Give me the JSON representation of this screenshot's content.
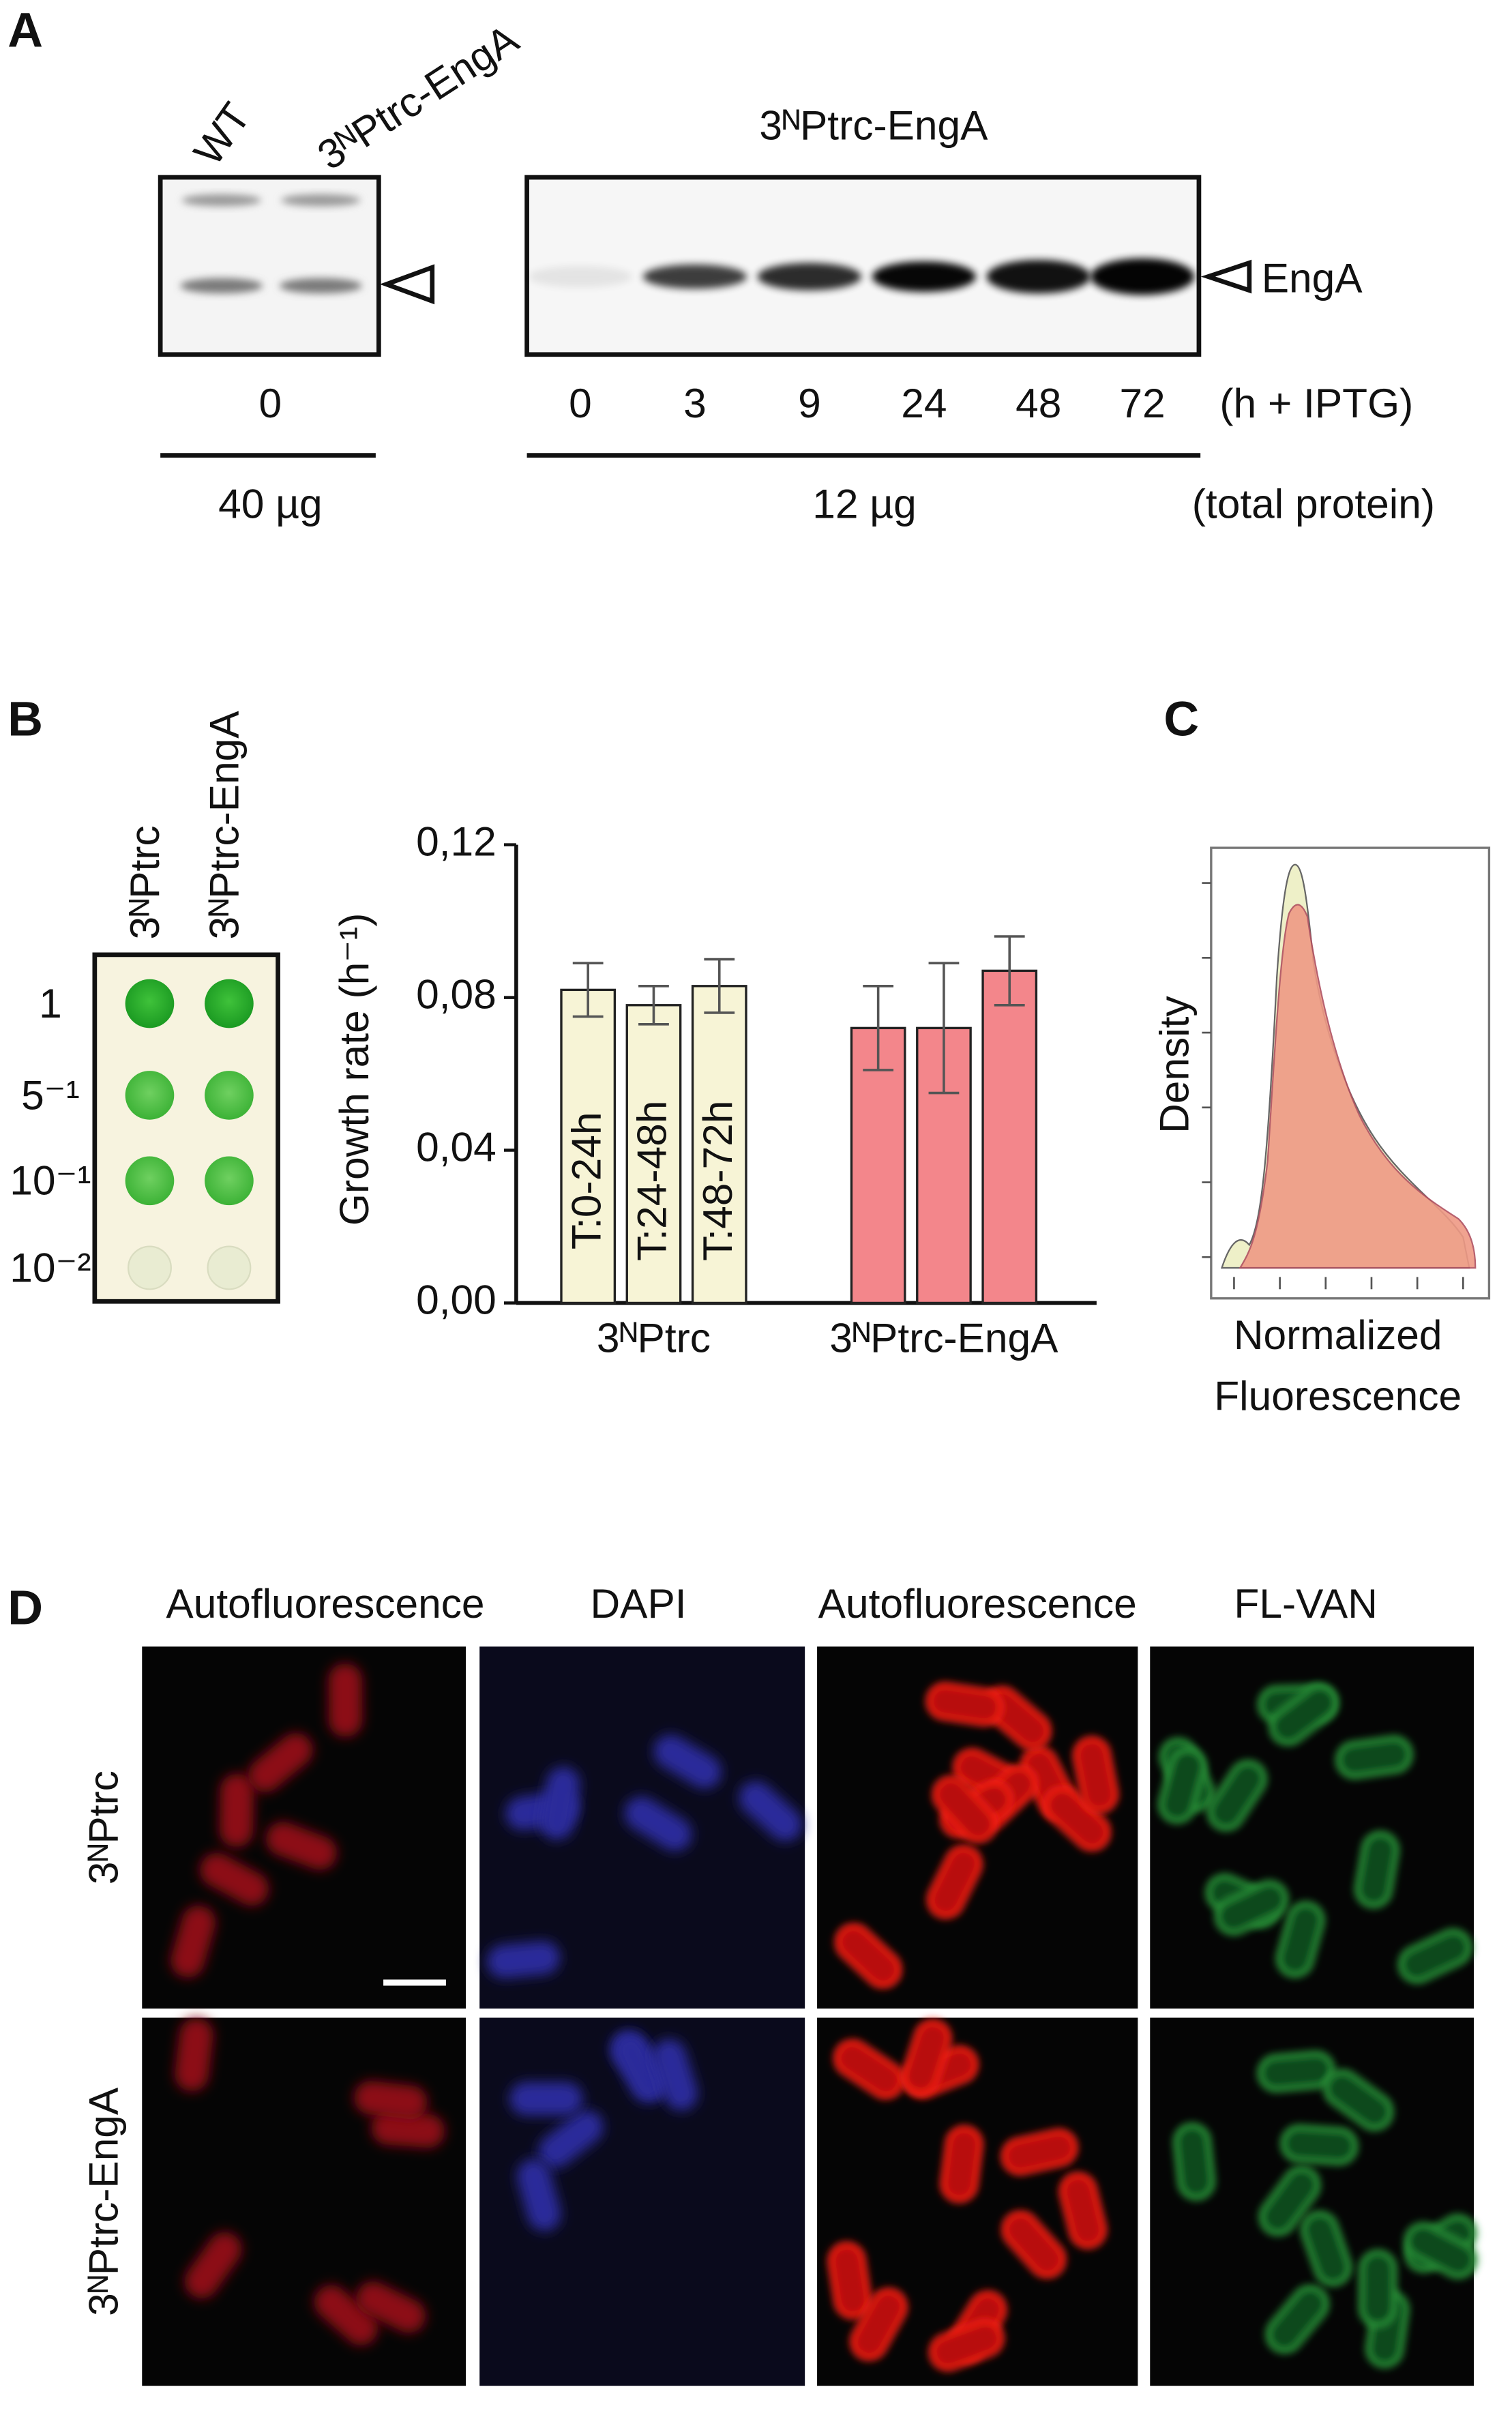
{
  "panel_a": {
    "label": "A",
    "left_lanes": [
      "WT",
      "3ᴺPtrc-EngA"
    ],
    "right_title": "3ᴺPtrc-EngA",
    "band_label": "EngA",
    "left_times": [
      "0"
    ],
    "right_times": [
      "0",
      "3",
      "9",
      "24",
      "48",
      "72"
    ],
    "time_unit": "(h + IPTG)",
    "left_amount": "40 µg",
    "right_amount": "12 µg",
    "amount_unit": "(total protein)"
  },
  "panel_b": {
    "label": "B",
    "strains": [
      "3ᴺPtrc",
      "3ᴺPtrc-EngA"
    ],
    "dilutions": [
      "1",
      "5⁻¹",
      "10⁻¹",
      "10⁻²"
    ]
  },
  "chart_data": {
    "type": "bar",
    "ylabel": "Growth rate (h⁻¹)",
    "categories": [
      "3ᴺPtrc",
      "3ᴺPtrc-EngA"
    ],
    "category_colors": [
      "#f7f4d6",
      "#f3868b"
    ],
    "series": [
      {
        "name": "T:0-24h",
        "values": [
          0.082,
          0.072
        ],
        "errors": [
          0.007,
          0.011
        ]
      },
      {
        "name": "T:24-48h",
        "values": [
          0.078,
          0.072
        ],
        "errors": [
          0.005,
          0.017
        ]
      },
      {
        "name": "T:48-72h",
        "values": [
          0.083,
          0.087
        ],
        "errors": [
          0.007,
          0.009
        ]
      }
    ],
    "ylim": [
      0,
      0.12
    ],
    "yticks": [
      {
        "value": 0,
        "label": "0,00"
      },
      {
        "value": 0.04,
        "label": "0,04"
      },
      {
        "value": 0.08,
        "label": "0,08"
      },
      {
        "value": 0.12,
        "label": "0,12"
      }
    ]
  },
  "panel_c": {
    "label": "C",
    "ylabel": "Density",
    "xlabel_lines": [
      "Normalized",
      "Fluorescence"
    ]
  },
  "panel_d": {
    "label": "D",
    "columns": [
      "Autofluorescence",
      "DAPI",
      "Autofluorescence",
      "FL-VAN"
    ],
    "rows": [
      "3ᴺPtrc",
      "3ᴺPtrc-EngA"
    ]
  }
}
